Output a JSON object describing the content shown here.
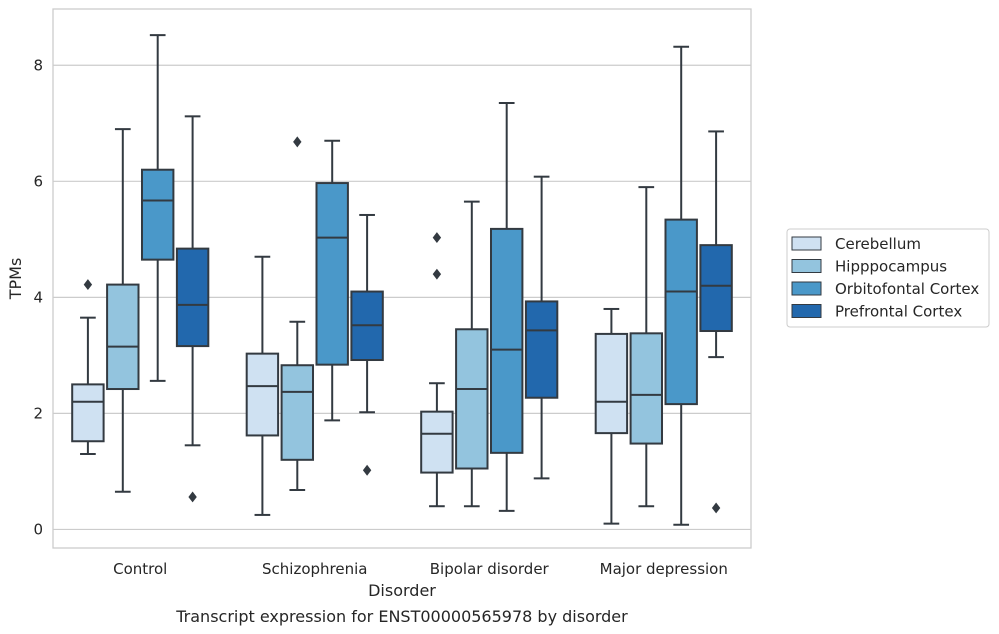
{
  "chart_data": {
    "type": "boxplot",
    "caption": "Transcript expression for ENST00000565978 by disorder",
    "xlabel": "Disorder",
    "ylabel": "TPMs",
    "ylim": [
      -0.32,
      8.97
    ],
    "yticks": [
      0,
      2,
      4,
      6,
      8
    ],
    "grid": true,
    "legend_position": "right",
    "categories": [
      "Control",
      "Schizophrenia",
      "Bipolar disorder",
      "Major depression"
    ],
    "series": [
      {
        "name": "Cerebellum",
        "color": "#cfe1f2",
        "boxes": [
          {
            "whislo": 1.3,
            "q1": 1.52,
            "med": 2.2,
            "q3": 2.5,
            "whishi": 3.65,
            "fliers": [
              4.22
            ]
          },
          {
            "whislo": 0.25,
            "q1": 1.62,
            "med": 2.47,
            "q3": 3.03,
            "whishi": 4.7,
            "fliers": []
          },
          {
            "whislo": 0.4,
            "q1": 0.98,
            "med": 1.65,
            "q3": 2.03,
            "whishi": 2.52,
            "fliers": [
              4.4,
              5.03
            ]
          },
          {
            "whislo": 0.1,
            "q1": 1.66,
            "med": 2.2,
            "q3": 3.37,
            "whishi": 3.8,
            "fliers": []
          }
        ]
      },
      {
        "name": "Hipppocampus",
        "color": "#93c4de",
        "boxes": [
          {
            "whislo": 0.65,
            "q1": 2.42,
            "med": 3.15,
            "q3": 4.22,
            "whishi": 6.9,
            "fliers": []
          },
          {
            "whislo": 0.68,
            "q1": 1.2,
            "med": 2.37,
            "q3": 2.83,
            "whishi": 3.58,
            "fliers": [
              6.68
            ]
          },
          {
            "whislo": 0.4,
            "q1": 1.05,
            "med": 2.42,
            "q3": 3.45,
            "whishi": 5.65,
            "fliers": []
          },
          {
            "whislo": 0.4,
            "q1": 1.48,
            "med": 2.32,
            "q3": 3.38,
            "whishi": 5.9,
            "fliers": []
          }
        ]
      },
      {
        "name": "Orbitofontal Cortex",
        "color": "#4a98c9",
        "boxes": [
          {
            "whislo": 2.56,
            "q1": 4.65,
            "med": 5.67,
            "q3": 6.2,
            "whishi": 8.52,
            "fliers": []
          },
          {
            "whislo": 1.88,
            "q1": 2.84,
            "med": 5.03,
            "q3": 5.97,
            "whishi": 6.7,
            "fliers": []
          },
          {
            "whislo": 0.32,
            "q1": 1.32,
            "med": 3.1,
            "q3": 5.18,
            "whishi": 7.35,
            "fliers": []
          },
          {
            "whislo": 0.08,
            "q1": 2.16,
            "med": 4.1,
            "q3": 5.34,
            "whishi": 8.32,
            "fliers": []
          }
        ]
      },
      {
        "name": "Prefrontal Cortex",
        "color": "#2268ad",
        "boxes": [
          {
            "whislo": 1.45,
            "q1": 3.16,
            "med": 3.87,
            "q3": 4.84,
            "whishi": 7.12,
            "fliers": [
              0.56
            ]
          },
          {
            "whislo": 2.02,
            "q1": 2.92,
            "med": 3.52,
            "q3": 4.1,
            "whishi": 5.42,
            "fliers": [
              1.02
            ]
          },
          {
            "whislo": 0.88,
            "q1": 2.27,
            "med": 3.43,
            "q3": 3.93,
            "whishi": 6.08,
            "fliers": []
          },
          {
            "whislo": 2.97,
            "q1": 3.42,
            "med": 4.2,
            "q3": 4.9,
            "whishi": 6.86,
            "fliers": [
              0.37
            ]
          }
        ]
      }
    ]
  }
}
